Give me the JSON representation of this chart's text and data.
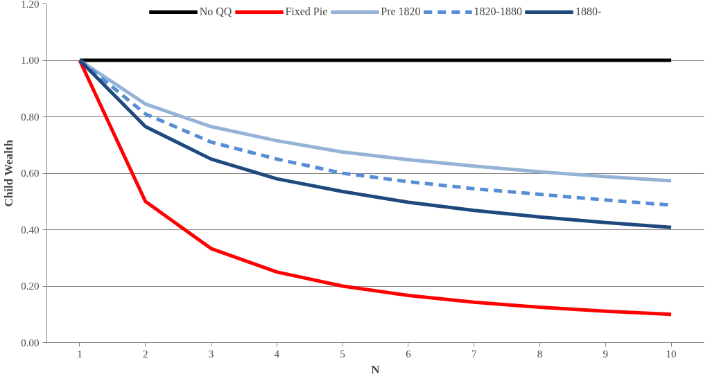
{
  "chart_data": {
    "type": "line",
    "xlabel": "N",
    "ylabel": "Child Wealth",
    "categories": [
      "1",
      "2",
      "3",
      "4",
      "5",
      "6",
      "7",
      "8",
      "9",
      "10"
    ],
    "series": [
      {
        "name": "No QQ",
        "color": "#000000",
        "values": [
          1.0,
          1.0,
          1.0,
          1.0,
          1.0,
          1.0,
          1.0,
          1.0,
          1.0,
          1.0
        ]
      },
      {
        "name": "Fixed Pie",
        "color": "#ff0000",
        "values": [
          1.0,
          0.5,
          0.333,
          0.25,
          0.2,
          0.167,
          0.143,
          0.125,
          0.111,
          0.1
        ]
      },
      {
        "name": "Pre 1820",
        "color": "#95b3d7",
        "values": [
          1.0,
          0.845,
          0.765,
          0.715,
          0.675,
          0.648,
          0.625,
          0.605,
          0.588,
          0.573
        ]
      },
      {
        "name": "1820-1880",
        "color": "#558ed5",
        "line_style": "dashed",
        "values": [
          1.0,
          0.81,
          0.71,
          0.65,
          0.6,
          0.57,
          0.545,
          0.525,
          0.505,
          0.487
        ]
      },
      {
        "name": "1880-",
        "color": "#1f497d",
        "values": [
          1.0,
          0.765,
          0.65,
          0.58,
          0.535,
          0.497,
          0.468,
          0.445,
          0.425,
          0.408
        ]
      }
    ],
    "ylim": [
      0,
      1.2
    ],
    "yticks": [
      {
        "value": 0,
        "label": "0.00"
      },
      {
        "value": 0.2,
        "label": "0.20"
      },
      {
        "value": 0.4,
        "label": "0.40"
      },
      {
        "value": 0.6,
        "label": "0.60"
      },
      {
        "value": 0.8,
        "label": "0.80"
      },
      {
        "value": 1.0,
        "label": "1.00"
      },
      {
        "value": 1.2,
        "label": "1.20"
      }
    ],
    "grid": "y",
    "legend": "top",
    "marker": "none"
  }
}
